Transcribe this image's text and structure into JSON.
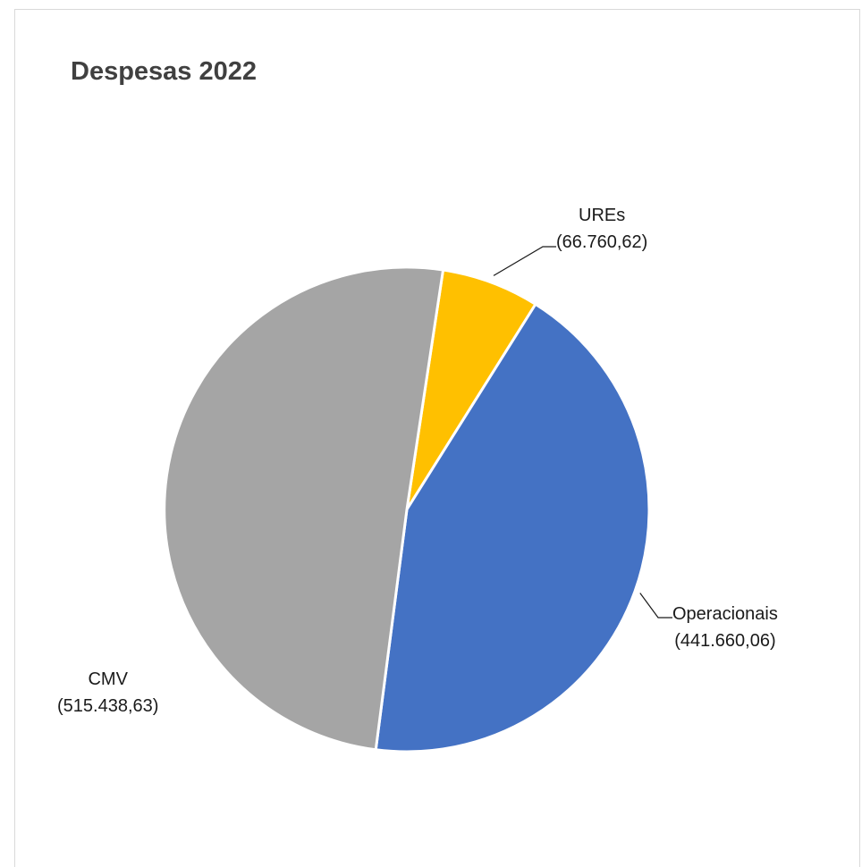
{
  "chart_data": {
    "type": "pie",
    "title": "Despesas 2022",
    "slices": [
      {
        "name": "UREs",
        "value": 66760.62,
        "display_value": "(66.760,62)",
        "color": "#FFC000"
      },
      {
        "name": "Operacionais",
        "value": 441660.06,
        "display_value": "(441.660,06)",
        "color": "#4472C4"
      },
      {
        "name": "CMV",
        "value": 515438.63,
        "display_value": "(515.438,63)",
        "color": "#A5A5A5"
      }
    ],
    "start_angle_deg": 8.6,
    "direction": "clockwise",
    "legend": "none"
  }
}
